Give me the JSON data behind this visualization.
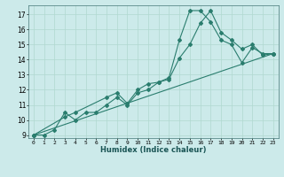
{
  "title": "",
  "xlabel": "Humidex (Indice chaleur)",
  "bg_color": "#cceaea",
  "line_color": "#2a7d6e",
  "xlim": [
    -0.5,
    23.5
  ],
  "ylim": [
    8.8,
    17.6
  ],
  "yticks": [
    9,
    10,
    11,
    12,
    13,
    14,
    15,
    16,
    17
  ],
  "xticks": [
    0,
    1,
    2,
    3,
    4,
    5,
    6,
    7,
    8,
    9,
    10,
    11,
    12,
    13,
    14,
    15,
    16,
    17,
    18,
    19,
    20,
    21,
    22,
    23
  ],
  "line1_x": [
    0,
    1,
    2,
    3,
    4,
    5,
    6,
    7,
    8,
    9,
    10,
    11,
    12,
    13,
    14,
    15,
    16,
    17,
    18,
    19,
    20,
    21,
    22,
    23
  ],
  "line1_y": [
    9.0,
    9.0,
    9.35,
    10.5,
    10.0,
    10.5,
    10.5,
    11.0,
    11.5,
    11.0,
    11.8,
    12.0,
    12.5,
    12.7,
    14.1,
    15.0,
    16.4,
    17.25,
    15.8,
    15.3,
    14.7,
    15.0,
    14.3,
    14.4
  ],
  "line2_x": [
    0,
    3,
    4,
    7,
    8,
    9,
    10,
    11,
    12,
    13,
    14,
    15,
    16,
    17,
    18,
    19,
    20,
    21,
    22,
    23
  ],
  "line2_y": [
    9.0,
    10.2,
    10.5,
    11.5,
    11.8,
    11.1,
    12.0,
    12.4,
    12.5,
    12.8,
    15.3,
    17.25,
    17.25,
    16.5,
    15.3,
    15.0,
    13.8,
    14.8,
    14.4,
    14.4
  ],
  "line3_x": [
    0,
    23
  ],
  "line3_y": [
    9.0,
    14.4
  ],
  "grid_color": "#b0d8d0",
  "marker": "D",
  "markersize": 2.0,
  "linewidth": 0.8
}
